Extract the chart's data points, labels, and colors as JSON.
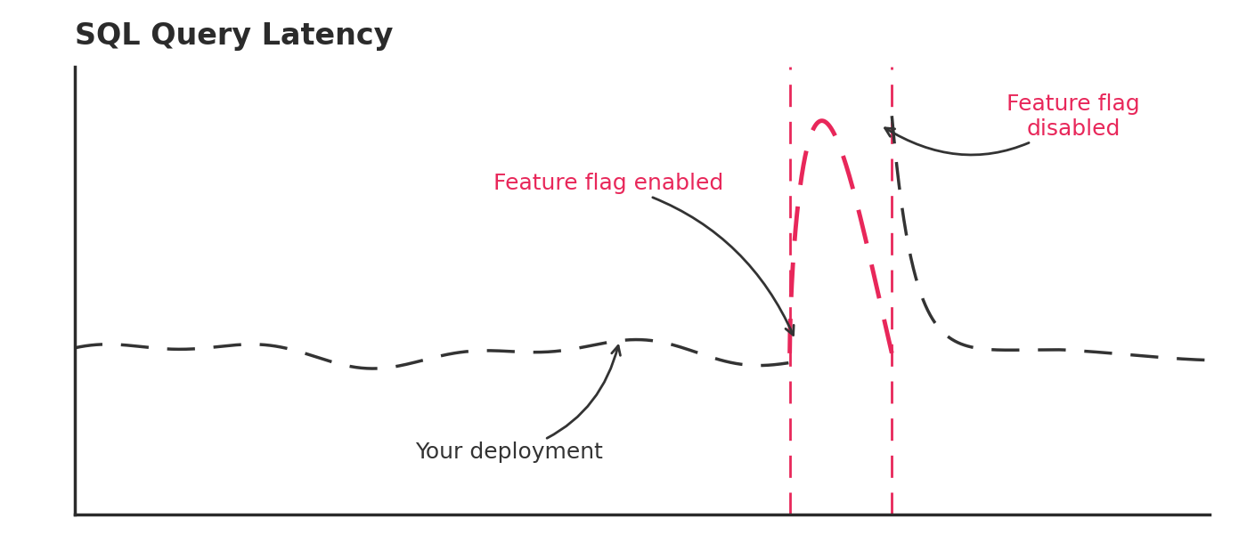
{
  "title": "SQL Query Latency",
  "title_fontsize": 24,
  "title_fontweight": "bold",
  "title_color": "#2b2b2b",
  "background_color": "#ffffff",
  "line_color": "#333333",
  "spike_color": "#e8275a",
  "vline_color": "#e8275a",
  "annotation_pink_color": "#e8275a",
  "annotation_black_color": "#333333",
  "xlim": [
    0,
    100
  ],
  "ylim": [
    0,
    10
  ],
  "steady_y": 3.6,
  "spike_peak_y": 8.8,
  "feature_flag_enabled_x": 63,
  "feature_flag_disabled_x": 72,
  "deployment_x": 48,
  "label_feature_flag_enabled": "Feature flag enabled",
  "label_feature_flag_disabled": "Feature flag\ndisabled",
  "label_deployment": "Your deployment"
}
